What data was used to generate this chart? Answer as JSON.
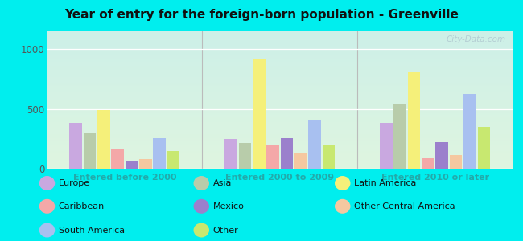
{
  "title": "Year of entry for the foreign-born population - Greenville",
  "groups": [
    "Entered before 2000",
    "Entered 2000 to 2009",
    "Entered 2010 or later"
  ],
  "colors": {
    "Europe": "#c9a8e0",
    "Asia": "#b8ccaa",
    "Latin America": "#f5f07a",
    "Caribbean": "#f4a8a8",
    "Mexico": "#9b80cc",
    "Other Central America": "#f5c8a0",
    "South America": "#a8c0f0",
    "Other": "#c8e870"
  },
  "data": {
    "Entered before 2000": {
      "Europe": 380,
      "Asia": 295,
      "Latin America": 490,
      "Caribbean": 170,
      "Mexico": 65,
      "Other Central America": 80,
      "South America": 255,
      "Other": 150
    },
    "Entered 2000 to 2009": {
      "Europe": 250,
      "Asia": 215,
      "Latin America": 920,
      "Caribbean": 195,
      "Mexico": 255,
      "Other Central America": 130,
      "South America": 410,
      "Other": 205
    },
    "Entered 2010 or later": {
      "Europe": 385,
      "Asia": 545,
      "Latin America": 810,
      "Caribbean": 90,
      "Mexico": 220,
      "Other Central America": 115,
      "South America": 625,
      "Other": 350
    }
  },
  "ylim": [
    0,
    1150
  ],
  "yticks": [
    0,
    500,
    1000
  ],
  "bg_top": "#d0f5ee",
  "bg_bottom": "#e8f5e0",
  "outer_bg": "#00eeee",
  "bar_order": [
    "Europe",
    "Asia",
    "Latin America",
    "Caribbean",
    "Mexico",
    "Other Central America",
    "South America",
    "Other"
  ],
  "watermark": "City-Data.com",
  "legend": [
    [
      "Europe",
      "#c9a8e0"
    ],
    [
      "Asia",
      "#b8ccaa"
    ],
    [
      "Latin America",
      "#f5f07a"
    ],
    [
      "Caribbean",
      "#f4a8a8"
    ],
    [
      "Mexico",
      "#9b80cc"
    ],
    [
      "Other Central America",
      "#f5c8a0"
    ],
    [
      "South America",
      "#a8c0f0"
    ],
    [
      "Other",
      "#c8e870"
    ]
  ]
}
